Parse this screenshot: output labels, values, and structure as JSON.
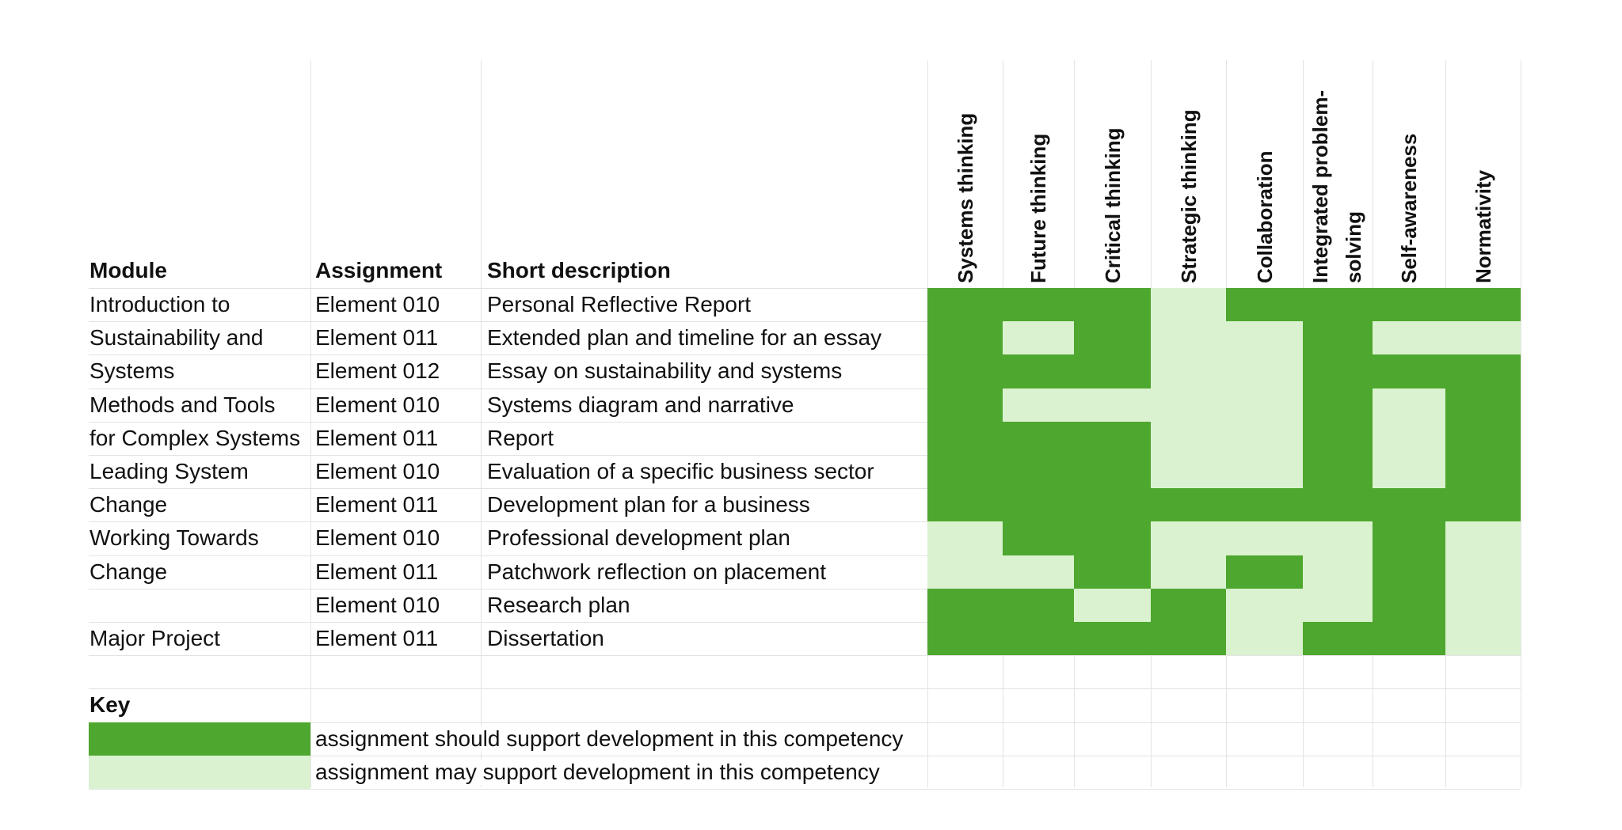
{
  "colors": {
    "should": "#4ea72e",
    "may": "#daf2d0",
    "grid": "#e3e3e3"
  },
  "headers": {
    "module": "Module",
    "assignment": "Assignment",
    "description": "Short description"
  },
  "competencies": [
    {
      "line1": "Systems thinking",
      "line2": ""
    },
    {
      "line1": "Future thinking",
      "line2": ""
    },
    {
      "line1": "Critical thinking",
      "line2": ""
    },
    {
      "line1": "Strategic thinking",
      "line2": ""
    },
    {
      "line1": "Collaboration",
      "line2": ""
    },
    {
      "line1": "Integrated problem-",
      "line2": "solving"
    },
    {
      "line1": "Self-awareness",
      "line2": ""
    },
    {
      "line1": "Normativity",
      "line2": ""
    }
  ],
  "rows": [
    {
      "module": "Introduction to",
      "assignment": "Element 010",
      "description": "Personal Reflective Report",
      "levels": [
        "should",
        "should",
        "should",
        "may",
        "should",
        "should",
        "should",
        "should"
      ]
    },
    {
      "module": "Sustainability and",
      "assignment": "Element 011",
      "description": "Extended plan and timeline for an essay",
      "levels": [
        "should",
        "may",
        "should",
        "may",
        "may",
        "should",
        "may",
        "may"
      ]
    },
    {
      "module": "Systems",
      "assignment": "Element 012",
      "description": "Essay on sustainability and systems",
      "levels": [
        "should",
        "should",
        "should",
        "may",
        "may",
        "should",
        "should",
        "should"
      ]
    },
    {
      "module": "Methods and Tools",
      "assignment": "Element 010",
      "description": "Systems diagram and narrative",
      "levels": [
        "should",
        "may",
        "may",
        "may",
        "may",
        "should",
        "may",
        "should"
      ]
    },
    {
      "module": "for Complex Systems",
      "assignment": "Element 011",
      "description": "Report",
      "levels": [
        "should",
        "should",
        "should",
        "may",
        "may",
        "should",
        "may",
        "should"
      ]
    },
    {
      "module": "Leading System",
      "assignment": "Element 010",
      "description": "Evaluation of a specific business sector",
      "levels": [
        "should",
        "should",
        "should",
        "may",
        "may",
        "should",
        "may",
        "should"
      ]
    },
    {
      "module": "Change",
      "assignment": "Element 011",
      "description": "Development plan for a business",
      "levels": [
        "should",
        "should",
        "should",
        "should",
        "should",
        "should",
        "should",
        "should"
      ]
    },
    {
      "module": "Working Towards",
      "assignment": "Element 010",
      "description": "Professional development plan",
      "levels": [
        "may",
        "should",
        "should",
        "may",
        "may",
        "may",
        "should",
        "may"
      ]
    },
    {
      "module": "Change",
      "assignment": "Element 011",
      "description": "Patchwork reflection on placement",
      "levels": [
        "may",
        "may",
        "should",
        "may",
        "should",
        "may",
        "should",
        "may"
      ]
    },
    {
      "module": "",
      "assignment": "Element 010",
      "description": "Research plan",
      "levels": [
        "should",
        "should",
        "may",
        "should",
        "may",
        "may",
        "should",
        "may"
      ]
    },
    {
      "module": "Major Project",
      "assignment": "Element 011",
      "description": "Dissertation",
      "levels": [
        "should",
        "should",
        "should",
        "should",
        "may",
        "should",
        "should",
        "may"
      ]
    }
  ],
  "key": {
    "title": "Key",
    "should_label": "assignment should support development in this competency",
    "may_label": "assignment may support development in this competency"
  }
}
